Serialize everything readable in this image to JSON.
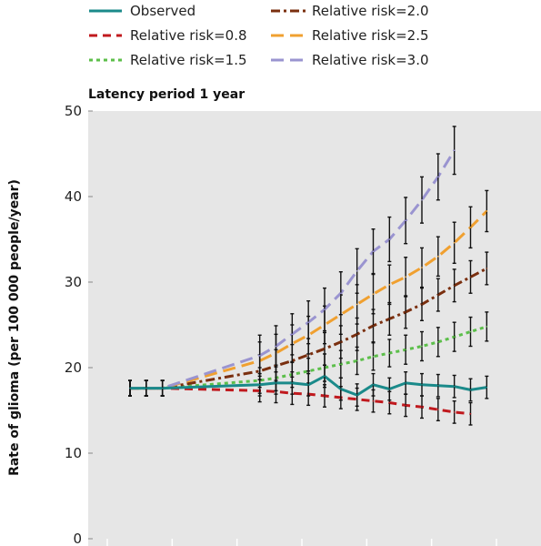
{
  "chart_data": {
    "type": "line",
    "subtitle": "Latency period 1 year",
    "ylabel": "Rate of glioma (per 100 000 people/year)",
    "xlabel": "",
    "ylim": [
      0,
      50
    ],
    "yticks": [
      0,
      10,
      20,
      30,
      40,
      50
    ],
    "grid": false,
    "legend_position": "top",
    "x": [
      1,
      2,
      3,
      4,
      5,
      6,
      7,
      8,
      9,
      10,
      11,
      12,
      13,
      14,
      15,
      16,
      17,
      18,
      19,
      20,
      21,
      22,
      23,
      24,
      25
    ],
    "series": [
      {
        "name": "Observed",
        "color": "#1a8a8a",
        "dash": "solid",
        "values": [
          17.6,
          17.6,
          17.6,
          null,
          null,
          null,
          null,
          null,
          18.0,
          18.2,
          18.2,
          18.0,
          19.0,
          17.5,
          16.8,
          18.0,
          17.5,
          18.2,
          18.0,
          17.9,
          17.8,
          17.4,
          17.7,
          null,
          null
        ],
        "errors": [
          0.9,
          0.9,
          0.9,
          null,
          null,
          null,
          null,
          null,
          1.3,
          1.3,
          1.3,
          1.3,
          1.3,
          1.3,
          1.3,
          1.3,
          1.3,
          1.3,
          1.3,
          1.3,
          1.3,
          1.3,
          1.3,
          null,
          null
        ]
      },
      {
        "name": "Relative risk=0.8",
        "color": "#c0191e",
        "dash": "dash",
        "values": [
          17.6,
          17.6,
          17.6,
          null,
          null,
          null,
          null,
          null,
          17.3,
          17.2,
          17.0,
          16.9,
          16.7,
          16.5,
          16.3,
          16.1,
          15.9,
          15.6,
          15.4,
          15.1,
          14.8,
          14.6,
          null,
          null,
          null
        ],
        "errors": [
          0.9,
          0.9,
          0.9,
          null,
          null,
          null,
          null,
          null,
          1.3,
          1.3,
          1.3,
          1.3,
          1.3,
          1.3,
          1.3,
          1.3,
          1.3,
          1.3,
          1.3,
          1.3,
          1.3,
          1.3,
          null,
          null,
          null
        ]
      },
      {
        "name": "Relative risk=1.5",
        "color": "#5cbf4a",
        "dash": "dot",
        "values": [
          17.6,
          17.6,
          17.6,
          null,
          null,
          null,
          null,
          null,
          18.5,
          18.8,
          19.2,
          19.6,
          20.0,
          20.4,
          20.8,
          21.3,
          21.7,
          22.1,
          22.5,
          23.0,
          23.6,
          24.2,
          24.8,
          null,
          null
        ],
        "errors": [
          0.9,
          0.9,
          0.9,
          null,
          null,
          null,
          null,
          null,
          1.5,
          1.5,
          1.5,
          1.5,
          1.6,
          1.6,
          1.6,
          1.6,
          1.6,
          1.7,
          1.7,
          1.7,
          1.7,
          1.7,
          1.7,
          null,
          null
        ]
      },
      {
        "name": "Relative risk=2.0",
        "color": "#7a2f0f",
        "dash": "dashdot",
        "values": [
          17.6,
          17.6,
          17.6,
          null,
          null,
          null,
          null,
          null,
          19.6,
          20.2,
          20.8,
          21.5,
          22.2,
          23.0,
          23.9,
          24.9,
          25.7,
          26.5,
          27.4,
          28.5,
          29.6,
          30.6,
          31.6,
          null,
          null
        ],
        "errors": [
          0.9,
          0.9,
          0.9,
          null,
          null,
          null,
          null,
          null,
          1.9,
          1.9,
          1.9,
          1.9,
          1.9,
          1.9,
          1.9,
          1.9,
          1.9,
          1.9,
          1.9,
          1.9,
          1.9,
          1.9,
          1.9,
          null,
          null
        ]
      },
      {
        "name": "Relative risk=2.5",
        "color": "#f0a030",
        "dash": "longdash",
        "values": [
          17.6,
          17.6,
          17.6,
          null,
          null,
          null,
          null,
          null,
          20.8,
          21.7,
          22.8,
          23.8,
          25.0,
          26.2,
          27.4,
          28.6,
          29.7,
          30.6,
          31.7,
          33.0,
          34.6,
          36.4,
          38.3,
          null,
          null
        ],
        "errors": [
          0.9,
          0.9,
          0.9,
          null,
          null,
          null,
          null,
          null,
          2.2,
          2.2,
          2.2,
          2.2,
          2.2,
          2.3,
          2.3,
          2.3,
          2.3,
          2.3,
          2.3,
          2.3,
          2.4,
          2.4,
          2.4,
          null,
          null
        ]
      },
      {
        "name": "Relative risk=3.0",
        "color": "#9a94d0",
        "dash": "longdash",
        "values": [
          17.6,
          17.6,
          17.6,
          null,
          null,
          null,
          null,
          null,
          21.4,
          22.5,
          23.9,
          25.3,
          26.8,
          28.7,
          31.3,
          33.6,
          35.0,
          37.2,
          39.6,
          42.3,
          45.4,
          null,
          null,
          null,
          null
        ],
        "errors": [
          0.9,
          0.9,
          0.9,
          null,
          null,
          null,
          null,
          null,
          2.4,
          2.4,
          2.4,
          2.5,
          2.5,
          2.5,
          2.6,
          2.6,
          2.6,
          2.7,
          2.7,
          2.7,
          2.8,
          null,
          null,
          null,
          null
        ]
      }
    ]
  }
}
